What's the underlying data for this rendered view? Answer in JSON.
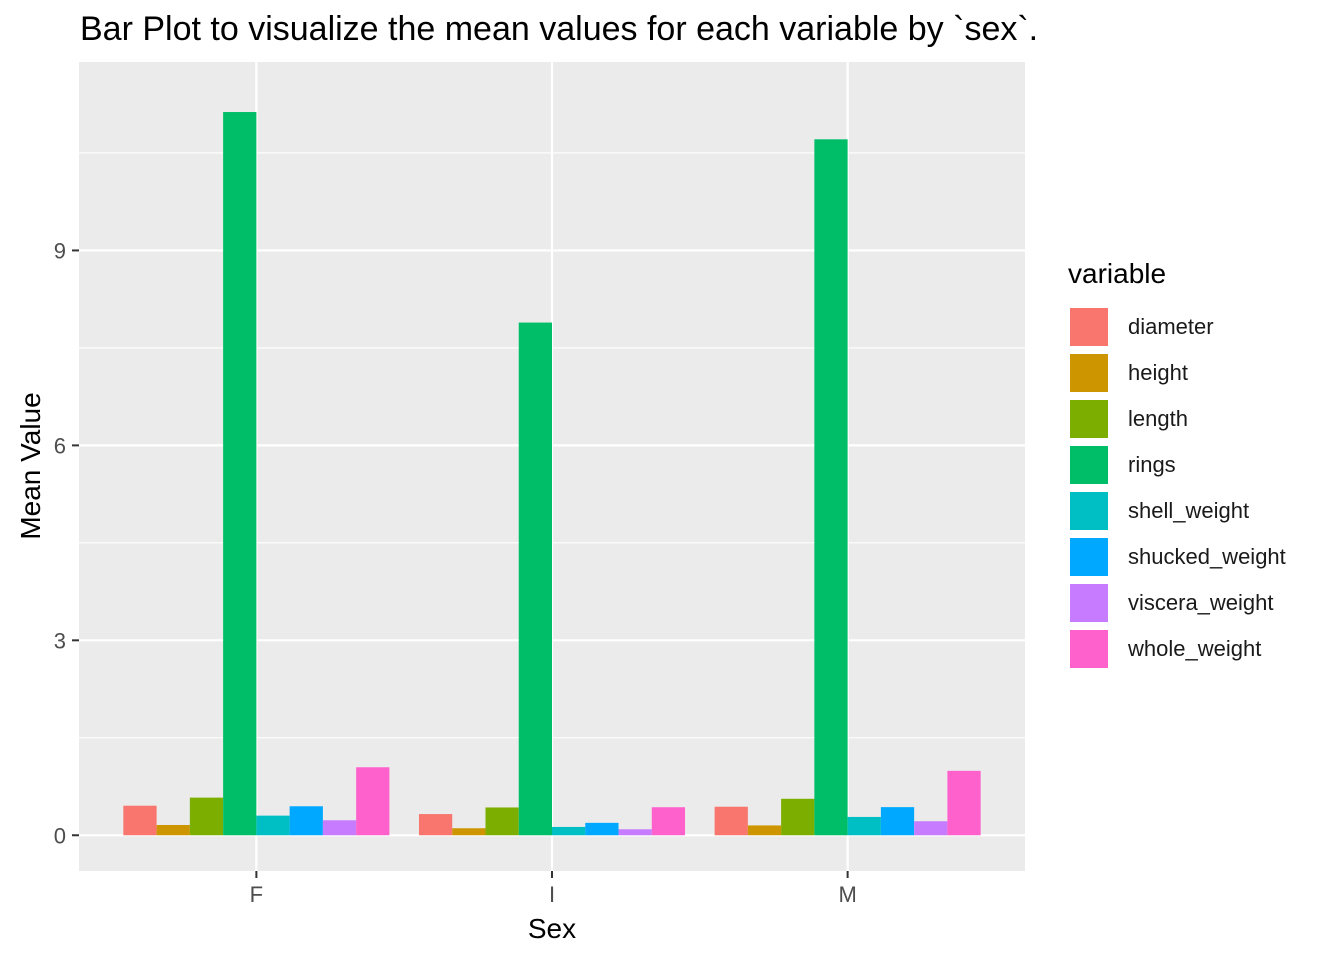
{
  "chart_data": {
    "type": "bar",
    "title": "Bar Plot to visualize the mean values for each variable by `sex`.",
    "xlabel": "Sex",
    "ylabel": "Mean Value",
    "categories": [
      "F",
      "I",
      "M"
    ],
    "ylim": [
      -0.55,
      11.9
    ],
    "yticks": [
      0,
      3,
      6,
      9
    ],
    "grid": true,
    "legend_title": "variable",
    "legend_position": "right",
    "series": [
      {
        "name": "diameter",
        "color": "#F8766D",
        "values": [
          0.4547,
          0.3264,
          0.4392
        ]
      },
      {
        "name": "height",
        "color": "#CD9600",
        "values": [
          0.1581,
          0.1079,
          0.1514
        ]
      },
      {
        "name": "length",
        "color": "#7CAE00",
        "values": [
          0.5791,
          0.4277,
          0.5613
        ]
      },
      {
        "name": "rings",
        "color": "#00BE67",
        "values": [
          11.13,
          7.89,
          10.71
        ]
      },
      {
        "name": "shell_weight",
        "color": "#00BFC4",
        "values": [
          0.302,
          0.128,
          0.282
        ]
      },
      {
        "name": "shucked_weight",
        "color": "#00A9FF",
        "values": [
          0.4462,
          0.191,
          0.4329
        ]
      },
      {
        "name": "viscera_weight",
        "color": "#C77CFF",
        "values": [
          0.2307,
          0.0921,
          0.2158
        ]
      },
      {
        "name": "whole_weight",
        "color": "#FF61CC",
        "values": [
          1.0465,
          0.4314,
          0.9914
        ]
      }
    ]
  }
}
